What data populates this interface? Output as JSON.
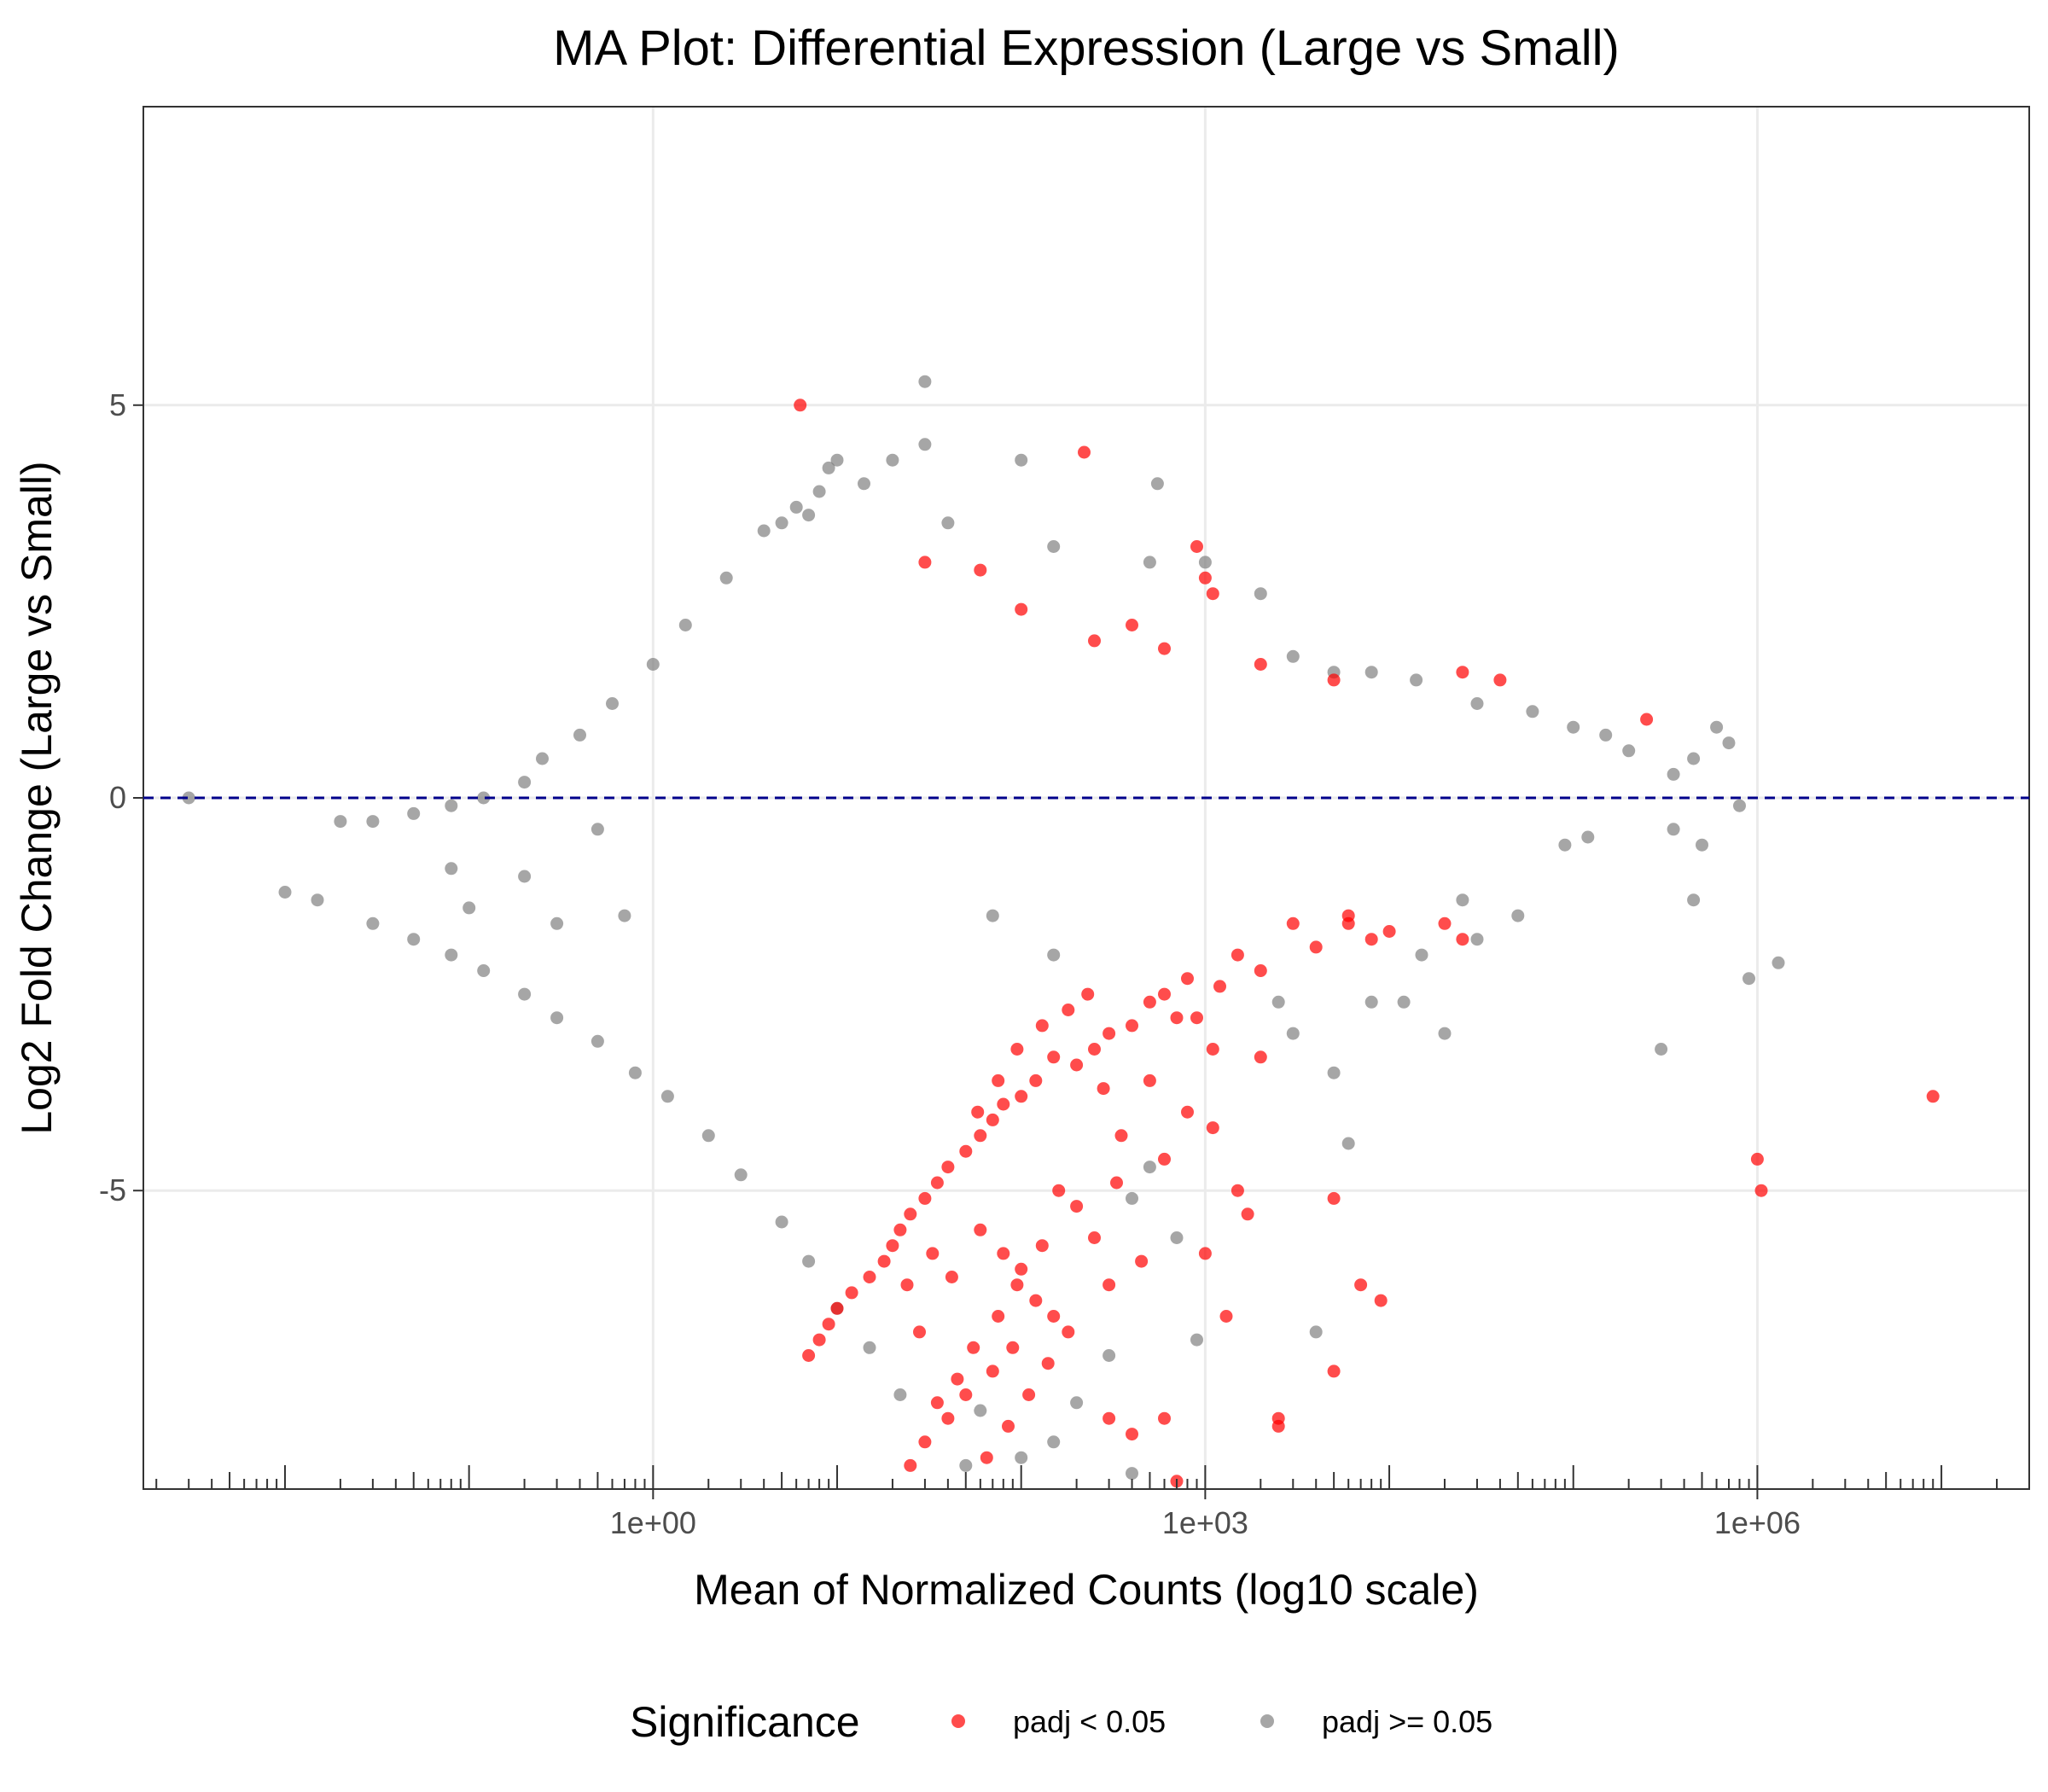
{
  "chart_data": {
    "type": "scatter",
    "title": "MA Plot: Differential Expression (Large vs Small)",
    "xlabel": "Mean of Normalized Counts (log10 scale)",
    "ylabel": "Log2 Fold Change (Large vs Small)",
    "x_scale": "log10",
    "xlim": [
      0.0017,
      30000000
    ],
    "ylim": [
      -8.8,
      8.8
    ],
    "x_ticks": [
      {
        "value": 1,
        "label": "1e+00"
      },
      {
        "value": 1000,
        "label": "1e+03"
      },
      {
        "value": 1000000,
        "label": "1e+06"
      }
    ],
    "y_ticks": [
      {
        "value": 5,
        "label": "5"
      },
      {
        "value": 0,
        "label": "0"
      },
      {
        "value": -5,
        "label": "-5"
      }
    ],
    "grid": true,
    "reference_line": {
      "y": 0,
      "color": "#00008b",
      "style": "dashed"
    },
    "legend": {
      "position": "bottom",
      "title": "Significance",
      "entries": [
        {
          "label": "padj < 0.05",
          "color": "#ff0000"
        },
        {
          "label": "padj >= 0.05",
          "color": "#808080"
        }
      ]
    },
    "series": [
      {
        "name": "padj < 0.05",
        "color": "#ff0000",
        "points": [
          [
            6.3,
            5.0
          ],
          [
            220,
            4.4
          ],
          [
            900,
            3.2
          ],
          [
            1000,
            2.8
          ],
          [
            1100,
            2.6
          ],
          [
            25000,
            1.6
          ],
          [
            40000,
            1.5
          ],
          [
            250000,
            1.0
          ],
          [
            60,
            2.9
          ],
          [
            30,
            3.0
          ],
          [
            100,
            2.4
          ],
          [
            400,
            2.2
          ],
          [
            250,
            2.0
          ],
          [
            600,
            1.9
          ],
          [
            2000,
            1.7
          ],
          [
            5000,
            1.5
          ],
          [
            3000,
            -1.6
          ],
          [
            6000,
            -1.5
          ],
          [
            10000,
            -1.7
          ],
          [
            20000,
            -1.6
          ],
          [
            25000,
            -1.8
          ],
          [
            4000,
            -1.9
          ],
          [
            8000,
            -1.8
          ],
          [
            1500,
            -2.0
          ],
          [
            2000,
            -2.2
          ],
          [
            1200,
            -2.4
          ],
          [
            800,
            -2.3
          ],
          [
            600,
            -2.5
          ],
          [
            500,
            -2.6
          ],
          [
            700,
            -2.8
          ],
          [
            400,
            -2.9
          ],
          [
            300,
            -3.0
          ],
          [
            250,
            -3.2
          ],
          [
            200,
            -3.4
          ],
          [
            150,
            -3.3
          ],
          [
            120,
            -3.6
          ],
          [
            100,
            -3.8
          ],
          [
            80,
            -3.9
          ],
          [
            70,
            -4.1
          ],
          [
            60,
            -4.3
          ],
          [
            50,
            -4.5
          ],
          [
            40,
            -4.7
          ],
          [
            35,
            -4.9
          ],
          [
            30,
            -5.1
          ],
          [
            25,
            -5.3
          ],
          [
            22,
            -5.5
          ],
          [
            20,
            -5.7
          ],
          [
            18,
            -5.9
          ],
          [
            15,
            -6.1
          ],
          [
            12,
            -6.3
          ],
          [
            10,
            -6.5
          ],
          [
            9,
            -6.7
          ],
          [
            8,
            -6.9
          ],
          [
            7,
            -7.1
          ],
          [
            60,
            -5.5
          ],
          [
            80,
            -5.8
          ],
          [
            100,
            -6.0
          ],
          [
            120,
            -6.4
          ],
          [
            150,
            -6.6
          ],
          [
            90,
            -7.0
          ],
          [
            70,
            -7.3
          ],
          [
            50,
            -7.6
          ],
          [
            40,
            -7.9
          ],
          [
            30,
            -8.2
          ],
          [
            25,
            -8.5
          ],
          [
            200,
            -5.2
          ],
          [
            250,
            -5.6
          ],
          [
            300,
            -6.2
          ],
          [
            180,
            -6.8
          ],
          [
            140,
            -7.2
          ],
          [
            110,
            -7.6
          ],
          [
            85,
            -8.0
          ],
          [
            65,
            -8.4
          ],
          [
            1100,
            -4.2
          ],
          [
            1500,
            -5.0
          ],
          [
            1000,
            -5.8
          ],
          [
            1700,
            -5.3
          ],
          [
            1300,
            -6.6
          ],
          [
            5000,
            -5.1
          ],
          [
            7000,
            -6.2
          ],
          [
            9000,
            -6.4
          ],
          [
            5000,
            -7.3
          ],
          [
            2500,
            -7.9
          ],
          [
            2500,
            -8.0
          ],
          [
            600,
            -7.9
          ],
          [
            400,
            -8.1
          ],
          [
            300,
            -7.9
          ],
          [
            700,
            -8.7
          ],
          [
            1000000,
            -4.6
          ],
          [
            1050000,
            -5.0
          ],
          [
            9000000,
            -3.8
          ],
          [
            900,
            -2.8
          ],
          [
            1100,
            -3.2
          ],
          [
            2000,
            -3.3
          ],
          [
            800,
            -4.0
          ],
          [
            600,
            -4.6
          ],
          [
            450,
            -5.9
          ],
          [
            350,
            -4.3
          ],
          [
            500,
            -3.6
          ],
          [
            280,
            -3.7
          ],
          [
            330,
            -4.9
          ],
          [
            160,
            -5.0
          ],
          [
            130,
            -5.7
          ],
          [
            95,
            -6.2
          ],
          [
            75,
            -6.6
          ],
          [
            55,
            -7.0
          ],
          [
            45,
            -7.4
          ],
          [
            35,
            -7.7
          ],
          [
            28,
            -6.8
          ],
          [
            24,
            -6.2
          ],
          [
            33,
            -5.8
          ],
          [
            42,
            -6.1
          ],
          [
            58,
            -4.0
          ],
          [
            75,
            -3.6
          ],
          [
            95,
            -3.2
          ],
          [
            130,
            -2.9
          ],
          [
            180,
            -2.7
          ],
          [
            230,
            -2.5
          ],
          [
            6000,
            -1.6
          ]
        ]
      },
      {
        "name": "padj >= 0.05",
        "color": "#808080",
        "points": [
          [
            30,
            5.3
          ],
          [
            30,
            4.5
          ],
          [
            9,
            4.2
          ],
          [
            10,
            4.3
          ],
          [
            20,
            4.3
          ],
          [
            14,
            4.0
          ],
          [
            100,
            4.3
          ],
          [
            550,
            4.0
          ],
          [
            6,
            3.7
          ],
          [
            8,
            3.9
          ],
          [
            5,
            3.5
          ],
          [
            7,
            3.6
          ],
          [
            40,
            3.5
          ],
          [
            150,
            3.2
          ],
          [
            500,
            3.0
          ],
          [
            1000,
            3.0
          ],
          [
            2000,
            2.6
          ],
          [
            3000,
            1.8
          ],
          [
            5000,
            1.6
          ],
          [
            8000,
            1.6
          ],
          [
            14000,
            1.5
          ],
          [
            30000,
            1.2
          ],
          [
            60000,
            1.1
          ],
          [
            100000,
            0.9
          ],
          [
            150000,
            0.8
          ],
          [
            200000,
            0.6
          ],
          [
            350000,
            0.3
          ],
          [
            450000,
            0.5
          ],
          [
            600000,
            0.9
          ],
          [
            700000,
            0.7
          ],
          [
            800000,
            -0.1
          ],
          [
            500000,
            -0.6
          ],
          [
            450000,
            -1.3
          ],
          [
            350000,
            -0.4
          ],
          [
            120000,
            -0.5
          ],
          [
            90000,
            -0.6
          ],
          [
            50000,
            -1.5
          ],
          [
            25000,
            -1.3
          ],
          [
            30000,
            -1.8
          ],
          [
            15000,
            -2.0
          ],
          [
            12000,
            -2.6
          ],
          [
            8000,
            -2.6
          ],
          [
            20000,
            -3.0
          ],
          [
            900000,
            -2.3
          ],
          [
            1300000,
            -2.1
          ],
          [
            300000,
            -3.2
          ],
          [
            2500,
            -2.6
          ],
          [
            3000,
            -3.0
          ],
          [
            5000,
            -3.5
          ],
          [
            6000,
            -4.4
          ],
          [
            4000,
            -6.8
          ],
          [
            900,
            -6.9
          ],
          [
            500,
            -4.7
          ],
          [
            700,
            -5.6
          ],
          [
            400,
            -5.1
          ],
          [
            300,
            -7.1
          ],
          [
            200,
            -7.7
          ],
          [
            150,
            -8.2
          ],
          [
            100,
            -8.4
          ],
          [
            50,
            -8.5
          ],
          [
            60,
            -7.8
          ],
          [
            400,
            -8.6
          ],
          [
            150,
            -2.0
          ],
          [
            70,
            -1.5
          ],
          [
            0.003,
            0.0
          ],
          [
            0.01,
            -1.2
          ],
          [
            0.015,
            -1.3
          ],
          [
            0.02,
            -0.3
          ],
          [
            0.03,
            -0.3
          ],
          [
            0.05,
            -0.2
          ],
          [
            0.08,
            -0.1
          ],
          [
            0.12,
            0.0
          ],
          [
            0.2,
            0.2
          ],
          [
            0.03,
            -1.6
          ],
          [
            0.05,
            -1.8
          ],
          [
            0.08,
            -2.0
          ],
          [
            0.12,
            -2.2
          ],
          [
            0.2,
            -2.5
          ],
          [
            0.3,
            -2.8
          ],
          [
            0.5,
            -3.1
          ],
          [
            0.8,
            -3.5
          ],
          [
            1.2,
            -3.8
          ],
          [
            2,
            -4.3
          ],
          [
            3,
            -4.8
          ],
          [
            5,
            -5.4
          ],
          [
            7,
            -5.9
          ],
          [
            10,
            -6.5
          ],
          [
            15,
            -7.0
          ],
          [
            22,
            -7.6
          ],
          [
            0.25,
            0.5
          ],
          [
            0.4,
            0.8
          ],
          [
            0.6,
            1.2
          ],
          [
            1,
            1.7
          ],
          [
            1.5,
            2.2
          ],
          [
            2.5,
            2.8
          ],
          [
            4,
            3.4
          ],
          [
            0.08,
            -0.9
          ],
          [
            0.1,
            -1.4
          ],
          [
            0.2,
            -1.0
          ],
          [
            0.3,
            -1.6
          ],
          [
            0.5,
            -0.4
          ],
          [
            0.7,
            -1.5
          ]
        ]
      }
    ]
  }
}
